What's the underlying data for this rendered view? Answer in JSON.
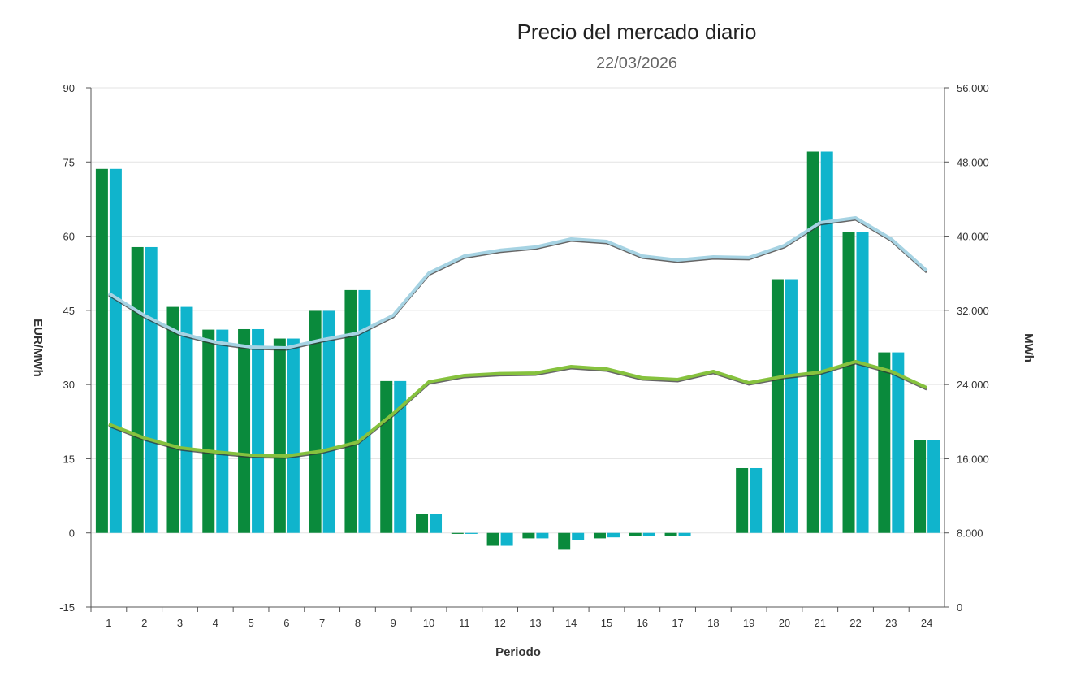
{
  "chart_data": {
    "type": "bar",
    "title": "Precio del mercado diario",
    "subtitle": "22/03/2026",
    "xlabel": "Periodo",
    "ylabel": "EUR/MWh",
    "ylabel_right": "MWh",
    "categories": [
      "1",
      "2",
      "3",
      "4",
      "5",
      "6",
      "7",
      "8",
      "9",
      "10",
      "11",
      "12",
      "13",
      "14",
      "15",
      "16",
      "17",
      "18",
      "19",
      "20",
      "21",
      "22",
      "23",
      "24"
    ],
    "ylim": [
      -15,
      90
    ],
    "yticks": [
      "-15",
      "0",
      "15",
      "30",
      "45",
      "60",
      "75",
      "90"
    ],
    "ylim_right": [
      0,
      56000
    ],
    "yticks_right": [
      "0",
      "8.000",
      "16.000",
      "24.000",
      "32.000",
      "40.000",
      "48.000",
      "56.000"
    ],
    "grid": true,
    "series": [
      {
        "kind": "bar",
        "axis": "left",
        "color": "#0a8a3c",
        "values": [
          73.6,
          57.8,
          45.7,
          41.1,
          41.2,
          39.3,
          44.9,
          49.1,
          30.7,
          3.8,
          -0.2,
          -2.6,
          -1.1,
          -3.4,
          -1.1,
          -0.7,
          -0.7,
          0,
          13.1,
          51.3,
          77.1,
          60.8,
          36.5,
          18.7
        ]
      },
      {
        "kind": "bar",
        "axis": "left",
        "color": "#10b4cc",
        "values": [
          73.6,
          57.8,
          45.7,
          41.1,
          41.2,
          39.3,
          44.9,
          49.1,
          30.7,
          3.8,
          -0.2,
          -2.6,
          -1.1,
          -1.4,
          -0.9,
          -0.7,
          -0.7,
          0,
          13.1,
          51.3,
          77.1,
          60.8,
          36.5,
          18.7
        ]
      },
      {
        "kind": "line",
        "axis": "right",
        "color": "#a6d3e3",
        "values": [
          33830,
          31460,
          29540,
          28570,
          28040,
          27960,
          28830,
          29540,
          31460,
          36020,
          37860,
          38480,
          38830,
          39700,
          39440,
          37860,
          37420,
          37770,
          37690,
          39000,
          41450,
          41980,
          39700,
          36280
        ]
      },
      {
        "kind": "line",
        "axis": "right",
        "color": "#86c23e",
        "values": [
          19720,
          18230,
          17180,
          16740,
          16390,
          16300,
          16830,
          17790,
          20860,
          24280,
          24980,
          25180,
          25240,
          25940,
          25680,
          24720,
          24540,
          25420,
          24190,
          24890,
          25330,
          26470,
          25420,
          23660
        ]
      }
    ]
  }
}
